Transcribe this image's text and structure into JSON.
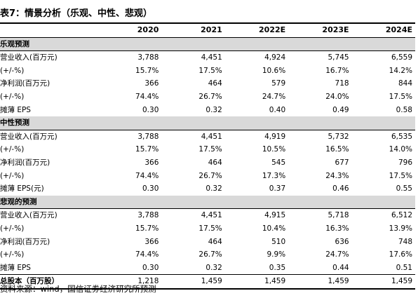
{
  "title": "表7：情景分析（乐观、中性、悲观）",
  "columns": [
    "",
    "2020",
    "2021",
    "2022E",
    "2023E",
    "2024E"
  ],
  "sections": [
    {
      "heading": "乐观预测",
      "rows": [
        {
          "label": "营业收入(百万元)",
          "values": [
            "3,788",
            "4,451",
            "4,924",
            "5,745",
            "6,559"
          ]
        },
        {
          "label": "(+/-%)",
          "values": [
            "15.7%",
            "17.5%",
            "10.6%",
            "16.7%",
            "14.2%"
          ]
        },
        {
          "label": "净利润(百万元)",
          "values": [
            "366",
            "464",
            "579",
            "718",
            "844"
          ]
        },
        {
          "label": "(+/-%)",
          "values": [
            "74.4%",
            "26.7%",
            "24.7%",
            "24.0%",
            "17.5%"
          ]
        },
        {
          "label": "摊薄 EPS",
          "values": [
            "0.30",
            "0.32",
            "0.40",
            "0.49",
            "0.58"
          ]
        }
      ]
    },
    {
      "heading": "中性预测",
      "rows": [
        {
          "label": "营业收入(百万元)",
          "values": [
            "3,788",
            "4,451",
            "4,919",
            "5,732",
            "6,535"
          ]
        },
        {
          "label": "(+/-%)",
          "values": [
            "15.7%",
            "17.5%",
            "10.5%",
            "16.5%",
            "14.0%"
          ]
        },
        {
          "label": "净利润(百万元)",
          "values": [
            "366",
            "464",
            "545",
            "677",
            "796"
          ]
        },
        {
          "label": "(+/-%)",
          "values": [
            "74.4%",
            "26.7%",
            "17.3%",
            "24.3%",
            "17.5%"
          ]
        },
        {
          "label": "摊薄 EPS(元)",
          "values": [
            "0.30",
            "0.32",
            "0.37",
            "0.46",
            "0.55"
          ]
        }
      ]
    },
    {
      "heading": "悲观的预测",
      "rows": [
        {
          "label": "营业收入(百万元)",
          "values": [
            "3,788",
            "4,451",
            "4,915",
            "5,718",
            "6,512"
          ]
        },
        {
          "label": "(+/-%)",
          "values": [
            "15.7%",
            "17.5%",
            "10.4%",
            "16.3%",
            "13.9%"
          ]
        },
        {
          "label": "净利润(百万元)",
          "values": [
            "366",
            "464",
            "510",
            "636",
            "748"
          ]
        },
        {
          "label": "(+/-%)",
          "values": [
            "74.4%",
            "26.7%",
            "9.9%",
            "24.7%",
            "17.6%"
          ]
        },
        {
          "label": "摊薄 EPS",
          "values": [
            "0.30",
            "0.32",
            "0.35",
            "0.44",
            "0.51"
          ]
        }
      ]
    }
  ],
  "total": {
    "label": "总股本（百万股）",
    "values": [
      "1,218",
      "1,459",
      "1,459",
      "1,459",
      "1,459"
    ]
  },
  "source": "资料来源：wind，国信证券经济研究所预测"
}
